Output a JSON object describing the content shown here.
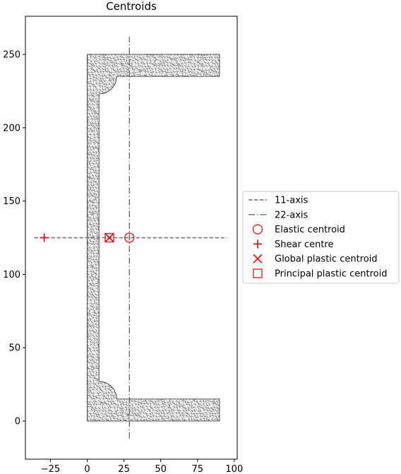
{
  "chart_data": {
    "type": "scatter",
    "title": "Centroids",
    "xlabel": "",
    "ylabel": "",
    "xlim": [
      -42,
      102
    ],
    "ylim": [
      -26,
      276
    ],
    "xticks": [
      -25,
      0,
      25,
      50,
      75,
      100
    ],
    "yticks": [
      0,
      50,
      100,
      150,
      200,
      250
    ],
    "xtick_labels": [
      "−25",
      "0",
      "25",
      "50",
      "75",
      "100"
    ],
    "ytick_labels": [
      "0",
      "50",
      "100",
      "150",
      "200",
      "250"
    ],
    "grid": false,
    "legend_position": "outside-right",
    "section": {
      "shape": "channel",
      "depth": 250,
      "flange_width": 90,
      "flange_thickness": 15,
      "web_thickness": 8,
      "root_radius": 12,
      "mesh_color": "#404040"
    },
    "series": [
      {
        "name": "11-axis",
        "kind": "line",
        "style": "dashed",
        "color": "#6f6f6f",
        "x": [
          -36,
          95
        ],
        "y": [
          125,
          125
        ]
      },
      {
        "name": "22-axis",
        "kind": "line",
        "style": "dashdot",
        "color": "#6f6f6f",
        "x": [
          28.7,
          28.7
        ],
        "y": [
          -12,
          262
        ]
      },
      {
        "name": "Elastic centroid",
        "kind": "marker",
        "marker": "circle",
        "color": "#ff0000",
        "x": [
          28.7
        ],
        "y": [
          125
        ]
      },
      {
        "name": "Shear centre",
        "kind": "marker",
        "marker": "plus",
        "color": "#d40000",
        "x": [
          -29.2
        ],
        "y": [
          125
        ]
      },
      {
        "name": "Global plastic centroid",
        "kind": "marker",
        "marker": "x",
        "color": "#ff0000",
        "x": [
          15.1
        ],
        "y": [
          125
        ]
      },
      {
        "name": "Principal plastic centroid",
        "kind": "marker",
        "marker": "square",
        "color": "#ff0000",
        "x": [
          15.1
        ],
        "y": [
          125
        ]
      }
    ]
  }
}
